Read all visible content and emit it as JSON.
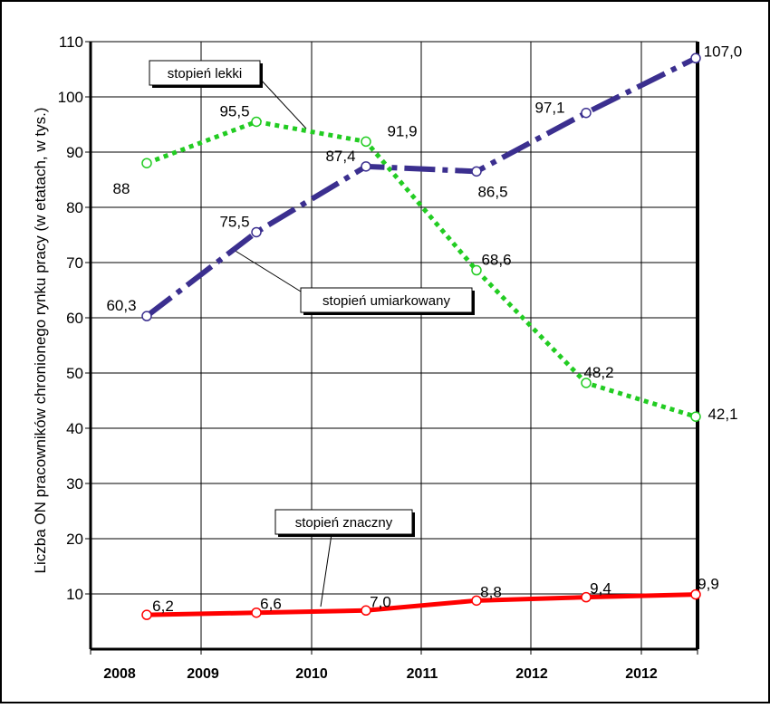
{
  "colors": {
    "lekki": "#22cc22",
    "umiarkowany": "#3b2f8f",
    "znaczny": "#ff0000",
    "background": "#ffffff",
    "axis": "#000000"
  },
  "chart_data": {
    "type": "line",
    "ylabel": "Liczba ON pracowników chronionego rynku pracy (w etatach, w tys.)",
    "xlabel": "",
    "title": "",
    "categories": [
      "2008",
      "2009",
      "2010",
      "2011",
      "2012",
      "2012"
    ],
    "ylim": [
      0,
      110
    ],
    "yticks": [
      10,
      20,
      30,
      40,
      50,
      60,
      70,
      80,
      90,
      100,
      110
    ],
    "grid": true,
    "series": [
      {
        "key": "lekki",
        "name": "stopień lekki",
        "style": "dotted",
        "x": [
          0,
          1,
          2,
          3,
          4,
          5
        ],
        "values": [
          88,
          95.5,
          91.9,
          68.6,
          48.2,
          42.1
        ],
        "labels": [
          "88",
          "95,5",
          "91,9",
          "68,6",
          "48,2",
          "42,1"
        ]
      },
      {
        "key": "umiarkowany",
        "name": "stopień umiarkowany",
        "style": "dashed",
        "x": [
          0,
          1,
          2,
          3,
          4,
          5
        ],
        "values": [
          60.3,
          75.5,
          87.4,
          86.5,
          97.1,
          107.0
        ],
        "labels": [
          "60,3",
          "75,5",
          "87,4",
          "86,5",
          "97,1",
          "107,0"
        ]
      },
      {
        "key": "znaczny",
        "name": "stopień znaczny",
        "style": "solid",
        "x": [
          0,
          1,
          2,
          3,
          4,
          5
        ],
        "values": [
          6.2,
          6.6,
          7.0,
          8.8,
          9.4,
          9.9
        ],
        "labels": [
          "6,2",
          "6,6",
          "7,0",
          "8,8",
          "9,4",
          "9,9"
        ]
      }
    ]
  }
}
